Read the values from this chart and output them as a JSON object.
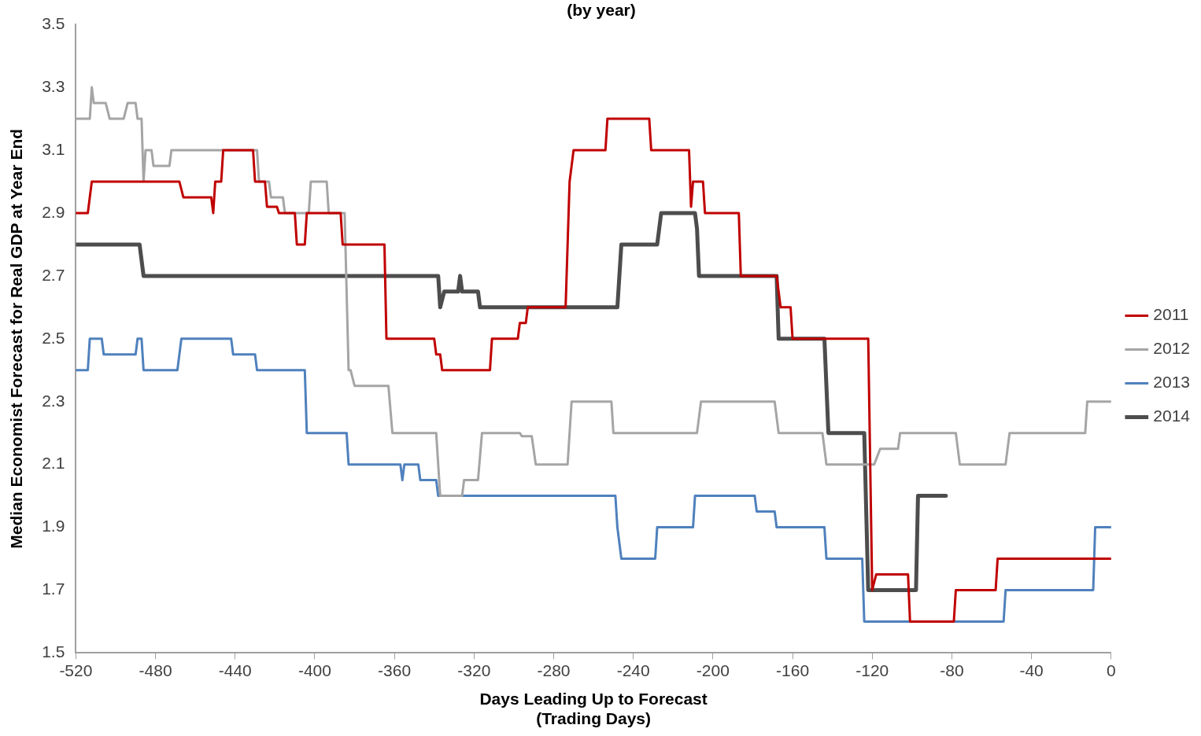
{
  "chart_data": {
    "type": "line",
    "title": "(by year)",
    "xlabel": "Days Leading Up to Forecast\n(Trading Days)",
    "ylabel": "Median Economist Forecast for Real GDP at Year End",
    "xlim": [
      -520,
      0
    ],
    "xticks": [
      -520,
      -480,
      -440,
      -400,
      -360,
      -320,
      -280,
      -240,
      -200,
      -160,
      -120,
      -80,
      -40,
      0
    ],
    "ylim": [
      1.5,
      3.5
    ],
    "yticks": [
      {
        "value": 1.5,
        "label": "1.5"
      },
      {
        "value": 1.7,
        "label": "1.7"
      },
      {
        "value": 1.9,
        "label": "1.9"
      },
      {
        "value": 2.1,
        "label": "2.1"
      },
      {
        "value": 2.3,
        "label": "2.3"
      },
      {
        "value": 2.5,
        "label": "2.5"
      },
      {
        "value": 2.7,
        "label": "2.7"
      },
      {
        "value": 2.9,
        "label": "2.9"
      },
      {
        "value": 3.1,
        "label": "3.1"
      },
      {
        "value": 3.3,
        "label": "3.3"
      },
      {
        "value": 3.5,
        "label": "3.5"
      }
    ],
    "grid": false,
    "legend": "right",
    "marker": "none",
    "line_style": "solid",
    "series": [
      {
        "name": "2011",
        "color": "#c00000",
        "x": [
          -520,
          -514,
          -512,
          -468,
          -466,
          -452,
          -451,
          -450,
          -447,
          -446,
          -431,
          -430,
          -425,
          -424,
          -419,
          -418,
          -410,
          -409,
          -405,
          -404,
          -387,
          -386,
          -365,
          -364,
          -340,
          -339,
          -337,
          -336,
          -312,
          -311,
          -298,
          -297,
          -294,
          -293,
          -274,
          -272,
          -270,
          -254,
          -253,
          -232,
          -231,
          -212,
          -211,
          -210,
          -205,
          -204,
          -187,
          -186,
          -168,
          -166,
          -161,
          -160,
          -122,
          -120,
          -118,
          -102,
          -101,
          -79,
          -78,
          -58,
          -57,
          0
        ],
        "values": [
          2.9,
          2.9,
          3.0,
          3.0,
          2.95,
          2.95,
          2.9,
          3.0,
          3.0,
          3.1,
          3.1,
          3.0,
          3.0,
          2.92,
          2.92,
          2.9,
          2.9,
          2.8,
          2.8,
          2.9,
          2.9,
          2.8,
          2.8,
          2.5,
          2.5,
          2.45,
          2.45,
          2.4,
          2.4,
          2.5,
          2.5,
          2.55,
          2.55,
          2.6,
          2.6,
          3.0,
          3.1,
          3.1,
          3.2,
          3.2,
          3.1,
          3.1,
          2.92,
          3.0,
          3.0,
          2.9,
          2.9,
          2.7,
          2.7,
          2.6,
          2.6,
          2.5,
          2.5,
          1.7,
          1.75,
          1.75,
          1.6,
          1.6,
          1.7,
          1.7,
          1.8,
          1.8
        ]
      },
      {
        "name": "2012",
        "color": "#a5a5a5",
        "x": [
          -520,
          -513,
          -512,
          -511,
          -505,
          -503,
          -496,
          -494,
          -490,
          -489,
          -487,
          -486,
          -485,
          -482,
          -481,
          -473,
          -472,
          -429,
          -428,
          -423,
          -422,
          -416,
          -415,
          -403,
          -402,
          -394,
          -393,
          -385,
          -383,
          -382,
          -380,
          -363,
          -361,
          -339,
          -337,
          -326,
          -325,
          -318,
          -316,
          -297,
          -296,
          -291,
          -289,
          -273,
          -271,
          -251,
          -250,
          -208,
          -206,
          -169,
          -167,
          -145,
          -143,
          -119,
          -116,
          -107,
          -106,
          -78,
          -76,
          -53,
          -52,
          -51,
          -13,
          -12,
          0
        ],
        "values": [
          3.2,
          3.2,
          3.3,
          3.25,
          3.25,
          3.2,
          3.2,
          3.25,
          3.25,
          3.2,
          3.2,
          3.0,
          3.1,
          3.1,
          3.05,
          3.05,
          3.1,
          3.1,
          3.0,
          3.0,
          2.95,
          2.95,
          2.9,
          2.9,
          3.0,
          3.0,
          2.9,
          2.9,
          2.4,
          2.4,
          2.35,
          2.35,
          2.2,
          2.2,
          2.0,
          2.0,
          2.05,
          2.05,
          2.2,
          2.2,
          2.19,
          2.19,
          2.1,
          2.1,
          2.3,
          2.3,
          2.2,
          2.2,
          2.3,
          2.3,
          2.2,
          2.2,
          2.1,
          2.1,
          2.15,
          2.15,
          2.2,
          2.2,
          2.1,
          2.1,
          2.15,
          2.2,
          2.2,
          2.3,
          2.3
        ]
      },
      {
        "name": "2013",
        "color": "#4f81bd",
        "x": [
          -520,
          -514,
          -513,
          -507,
          -506,
          -490,
          -489,
          -487,
          -486,
          -469,
          -467,
          -442,
          -441,
          -430,
          -429,
          -405,
          -404,
          -384,
          -383,
          -357,
          -356,
          -355,
          -354,
          -348,
          -347,
          -339,
          -338,
          -249,
          -248,
          -246,
          -229,
          -228,
          -210,
          -209,
          -179,
          -178,
          -169,
          -168,
          -144,
          -143,
          -125,
          -124,
          -54,
          -53,
          -9,
          -8,
          0
        ],
        "values": [
          2.4,
          2.4,
          2.5,
          2.5,
          2.45,
          2.45,
          2.5,
          2.5,
          2.4,
          2.4,
          2.5,
          2.5,
          2.45,
          2.45,
          2.4,
          2.4,
          2.2,
          2.2,
          2.1,
          2.1,
          2.05,
          2.1,
          2.1,
          2.1,
          2.05,
          2.05,
          2.0,
          2.0,
          1.9,
          1.8,
          1.8,
          1.9,
          1.9,
          2.0,
          2.0,
          1.95,
          1.95,
          1.9,
          1.9,
          1.8,
          1.8,
          1.6,
          1.6,
          1.7,
          1.7,
          1.9,
          1.9
        ]
      },
      {
        "name": "2014",
        "color": "#4d4d4d",
        "x": [
          -520,
          -488,
          -486,
          -338,
          -337,
          -335,
          -328,
          -327,
          -326,
          -318,
          -317,
          -248,
          -246,
          -228,
          -226,
          -209,
          -208,
          -207,
          -168,
          -167,
          -144,
          -142,
          -124,
          -122,
          -98,
          -97,
          -83
        ],
        "values": [
          2.8,
          2.8,
          2.7,
          2.7,
          2.6,
          2.65,
          2.65,
          2.7,
          2.65,
          2.65,
          2.6,
          2.6,
          2.8,
          2.8,
          2.9,
          2.9,
          2.85,
          2.7,
          2.7,
          2.5,
          2.5,
          2.2,
          2.2,
          1.7,
          1.7,
          2.0,
          2.0
        ]
      }
    ]
  }
}
